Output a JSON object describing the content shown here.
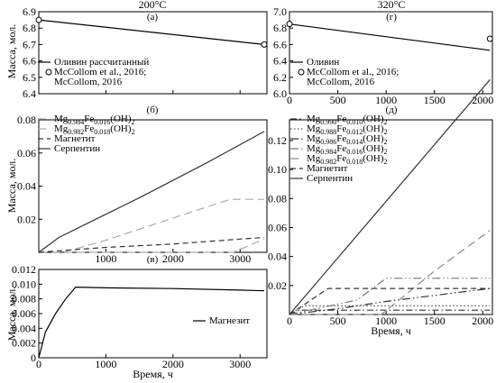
{
  "chart_data": [
    {
      "id": "a",
      "type": "line",
      "panel_label": "(а)",
      "title": "200°C",
      "xlabel": "",
      "ylabel": "Масса, мол.",
      "xlim": [
        0,
        3400
      ],
      "ylim": [
        6.4,
        6.9
      ],
      "xticks": [
        0,
        1000,
        2000,
        3000
      ],
      "xtick_labels": [
        "",
        "",
        "",
        ""
      ],
      "yticks": [
        6.4,
        6.5,
        6.6,
        6.7,
        6.8,
        6.9
      ],
      "ytick_labels": [
        "6.4",
        "6.5",
        "6.6",
        "6.7",
        "6.8",
        "6.9"
      ],
      "legend_position": "bottom-left",
      "series": [
        {
          "name": "Оливин рассчитанный",
          "style": "solid",
          "color": "#000000",
          "x": [
            0,
            3360
          ],
          "y": [
            6.85,
            6.7
          ]
        },
        {
          "name": "McCollom et al., 2016; McCollom, 2016",
          "style": "marker",
          "color": "#000000",
          "x": [
            0,
            3360
          ],
          "y": [
            6.85,
            6.7
          ]
        }
      ]
    },
    {
      "id": "b",
      "type": "line",
      "panel_label": "(б)",
      "title": "",
      "xlabel": "",
      "ylabel": "Масса, мол.",
      "xlim": [
        0,
        3400
      ],
      "ylim": [
        0,
        0.08
      ],
      "xticks": [
        0,
        1000,
        2000,
        3000
      ],
      "xtick_labels": [
        "",
        "1000",
        "2000",
        "3000"
      ],
      "yticks": [
        0,
        0.02,
        0.04,
        0.06,
        0.08
      ],
      "ytick_labels": [
        "",
        "0.02",
        "0.04",
        "0.06",
        "0.08"
      ],
      "legend_position": "top-left",
      "series": [
        {
          "name_main": "Mg",
          "sub1": "0.984",
          "name_mid": "Fe",
          "sub2": "0.016",
          "name_end": "(OH)",
          "sub3": "2",
          "style": "longdash",
          "color": "#aaaaaa",
          "x": [
            0,
            350,
            900,
            2850,
            3360
          ],
          "y": [
            0,
            0,
            0.006,
            0.032,
            0.032
          ]
        },
        {
          "name_main": "Mg",
          "sub1": "0.982",
          "name_mid": "Fe",
          "sub2": "0.018",
          "name_end": "(OH)",
          "sub3": "2",
          "style": "longdash",
          "color": "#aaaaaa",
          "x": [
            0,
            2900,
            3360
          ],
          "y": [
            0,
            0,
            0.008
          ]
        },
        {
          "name": "Магнетит",
          "style": "dash",
          "color": "#333333",
          "x": [
            0,
            500,
            1000,
            2000,
            3000,
            3360
          ],
          "y": [
            0,
            0.0015,
            0.003,
            0.005,
            0.008,
            0.009
          ]
        },
        {
          "name": "Серпентин",
          "style": "solid",
          "color": "#333333",
          "x": [
            0,
            300,
            800,
            1500,
            2500,
            3360
          ],
          "y": [
            0,
            0.009,
            0.019,
            0.033,
            0.054,
            0.073
          ]
        }
      ]
    },
    {
      "id": "v",
      "type": "line",
      "panel_label": "(в)",
      "title": "",
      "xlabel": "Время, ч",
      "ylabel": "Масса, мол.",
      "xlim": [
        0,
        3400
      ],
      "ylim": [
        0,
        0.012
      ],
      "xticks": [
        0,
        1000,
        2000,
        3000
      ],
      "xtick_labels": [
        "0",
        "1000",
        "2000",
        "3000"
      ],
      "yticks": [
        0,
        0.002,
        0.004,
        0.006,
        0.008,
        0.01,
        0.012
      ],
      "ytick_labels": [
        "0",
        "0.002",
        "0.004",
        "0.006",
        "0.008",
        "0.010",
        "0.012"
      ],
      "legend_position": "bottom-right",
      "series": [
        {
          "name": "Магнезит",
          "style": "solid",
          "color": "#000000",
          "x": [
            0,
            100,
            250,
            400,
            550,
            1000,
            2000,
            3000,
            3360
          ],
          "y": [
            0,
            0.0035,
            0.006,
            0.008,
            0.0096,
            0.0095,
            0.0094,
            0.0092,
            0.0091
          ]
        }
      ]
    },
    {
      "id": "g",
      "type": "line",
      "panel_label": "(г)",
      "title": "320°C",
      "xlabel": "",
      "ylabel": "",
      "xlim": [
        0,
        2100
      ],
      "ylim": [
        6.0,
        7.0
      ],
      "xticks": [
        0,
        500,
        1000,
        1500,
        2000
      ],
      "xtick_labels": [
        "0",
        "500",
        "1000",
        "1500",
        "2000"
      ],
      "yticks": [
        6.0,
        6.2,
        6.4,
        6.6,
        6.8,
        7.0
      ],
      "ytick_labels": [
        "6.0",
        "6.2",
        "6.4",
        "6.6",
        "6.8",
        "7.0"
      ],
      "legend_position": "bottom-left",
      "series": [
        {
          "name": "Оливин",
          "style": "solid",
          "color": "#000000",
          "x": [
            0,
            2075
          ],
          "y": [
            6.85,
            6.53
          ]
        },
        {
          "name": "McCollom et al., 2016; McCollom, 2016",
          "style": "marker",
          "color": "#000000",
          "x": [
            0,
            2075
          ],
          "y": [
            6.85,
            6.67
          ]
        }
      ]
    },
    {
      "id": "d",
      "type": "line",
      "panel_label": "(д)",
      "title": "",
      "xlabel": "Время, ч",
      "ylabel": "",
      "xlim": [
        0,
        2100
      ],
      "ylim": [
        0,
        0.2
      ],
      "xticks": [
        0,
        500,
        1000,
        1500,
        2000
      ],
      "xtick_labels": [
        "0",
        "500",
        "1000",
        "1500",
        "2000"
      ],
      "yticks": [
        0,
        0.02,
        0.04,
        0.06,
        0.08,
        0.1,
        0.12
      ],
      "ytick_labels": [
        "",
        "0.02",
        "0.04",
        "0.06",
        "0.08",
        "0.10",
        "0.12"
      ],
      "legend_position": "top-left",
      "series": [
        {
          "name_main": "Mg",
          "sub1": "0.990",
          "name_mid": "Fe",
          "sub2": "0.010",
          "name_end": "(OH)",
          "sub3": "2",
          "style": "dashdot",
          "color": "#333333",
          "x": [
            0,
            100,
            1000,
            2075
          ],
          "y": [
            0,
            0.003,
            0.003,
            0.003
          ]
        },
        {
          "name_main": "Mg",
          "sub1": "0.988",
          "name_mid": "Fe",
          "sub2": "0.012",
          "name_end": "(OH)",
          "sub3": "2",
          "style": "dot",
          "color": "#555555",
          "x": [
            0,
            150,
            2075
          ],
          "y": [
            0,
            0.006,
            0.006
          ]
        },
        {
          "name_main": "Mg",
          "sub1": "0.986",
          "name_mid": "Fe",
          "sub2": "0.014",
          "name_end": "(OH)",
          "sub3": "2",
          "style": "dashdotdot",
          "color": "#333333",
          "x": [
            0,
            500,
            1000,
            2075
          ],
          "y": [
            0,
            0.004,
            0.009,
            0.018
          ]
        },
        {
          "name_main": "Mg",
          "sub1": "0.984",
          "name_mid": "Fe",
          "sub2": "0.016",
          "name_end": "(OH)",
          "sub3": "2",
          "style": "dashdotdot",
          "color": "#777777",
          "x": [
            0,
            700,
            1000,
            2075
          ],
          "y": [
            0,
            0.01,
            0.025,
            0.025
          ]
        },
        {
          "name_main": "Mg",
          "sub1": "0.982",
          "name_mid": "Fe",
          "sub2": "0.018",
          "name_end": "(OH)",
          "sub3": "2",
          "style": "longdash",
          "color": "#888888",
          "x": [
            0,
            950,
            1500,
            2075
          ],
          "y": [
            0,
            0,
            0.03,
            0.058
          ]
        },
        {
          "name": "Магнетит",
          "style": "dash",
          "color": "#333333",
          "x": [
            0,
            400,
            2075
          ],
          "y": [
            0,
            0.018,
            0.018
          ]
        },
        {
          "name": "Серпентин",
          "style": "solid",
          "color": "#333333",
          "x": [
            0,
            2075
          ],
          "y": [
            0,
            0.162
          ]
        }
      ]
    }
  ]
}
